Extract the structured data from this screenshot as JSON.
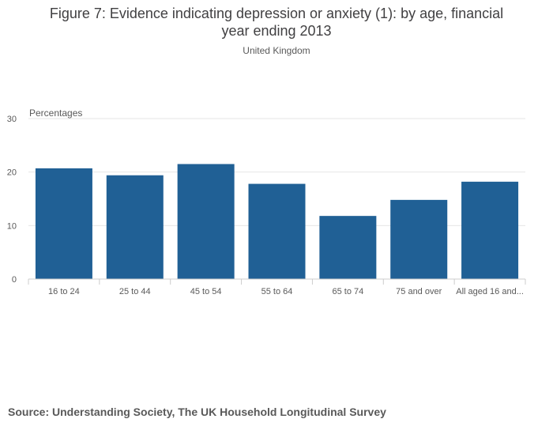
{
  "chart_data": {
    "type": "bar",
    "title_lines": [
      "Figure 7: Evidence indicating depression or anxiety (1): by age, financial",
      "year ending 2013"
    ],
    "subtitle": "United Kingdom",
    "ylabel": "Percentages",
    "xlabel": "",
    "categories": [
      "16 to 24",
      "25 to 44",
      "45 to 54",
      "55 to 64",
      "65 to 74",
      "75 and over",
      "All aged 16 and..."
    ],
    "values": [
      20.7,
      19.4,
      21.5,
      17.8,
      11.8,
      14.8,
      18.2
    ],
    "ylim": [
      0,
      30
    ],
    "yticks": [
      0,
      10,
      20,
      30
    ],
    "grid": true,
    "bar_color": "#206095",
    "source": "Source: Understanding Society, The UK Household Longitudinal Survey"
  }
}
